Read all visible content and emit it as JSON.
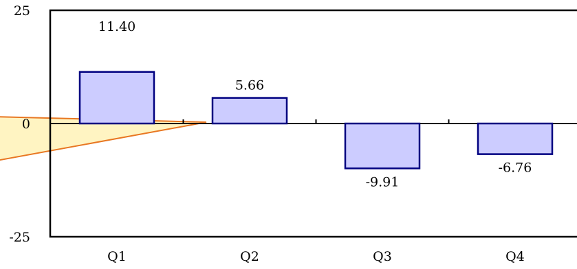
{
  "chart_data": {
    "type": "bar",
    "categories": [
      "Q1",
      "Q2",
      "Q3",
      "Q4"
    ],
    "values": [
      11.4,
      5.66,
      -9.91,
      -6.76
    ],
    "data_labels": [
      "11.40",
      "5.66",
      "-9.91",
      "-6.76"
    ],
    "ylim": [
      -25,
      25
    ],
    "y_ticks": [
      "-25",
      "0",
      "25"
    ],
    "grid": false,
    "legend": "none"
  },
  "colors": {
    "bar_fill": "#ccccff",
    "bar_stroke": "#000080",
    "callout_fill": "#fff4c2",
    "callout_stroke": "#e87722"
  }
}
